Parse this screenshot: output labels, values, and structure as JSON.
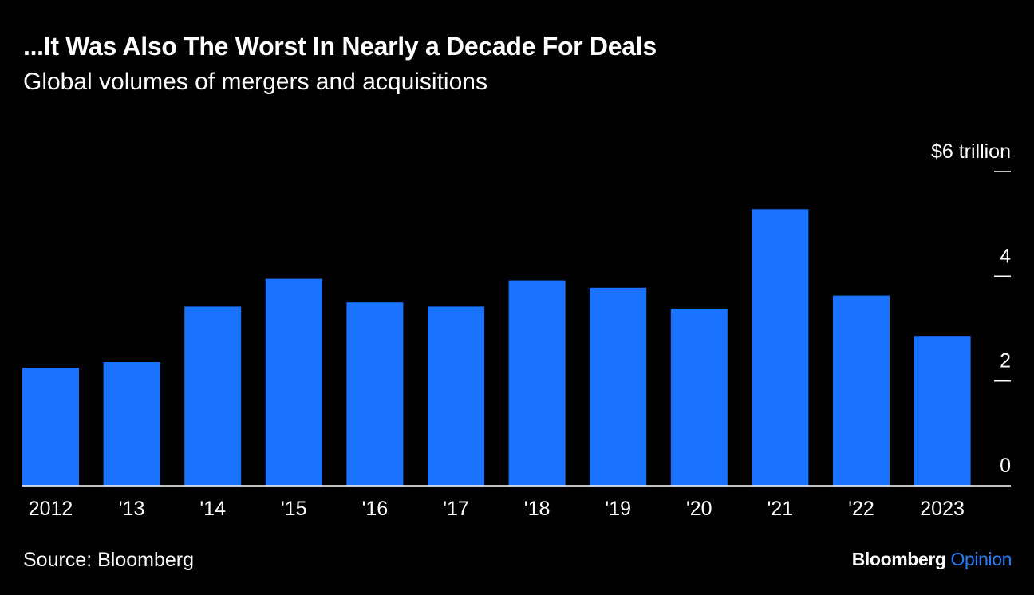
{
  "header": {
    "title": "...It Was Also The Worst In Nearly a Decade For Deals",
    "subtitle": "Global volumes of mergers and acquisitions"
  },
  "footer": {
    "source": "Source: Bloomberg",
    "brand_primary": "Bloomberg",
    "brand_secondary": "Opinion"
  },
  "colors": {
    "background": "#000000",
    "bar": "#1a73ff",
    "text": "#ffffff",
    "brand_accent": "#2a7df5"
  },
  "chart_data": {
    "type": "bar",
    "title": "...It Was Also The Worst In Nearly a Decade For Deals",
    "subtitle": "Global volumes of mergers and acquisitions",
    "categories": [
      "2012",
      "'13",
      "'14",
      "'15",
      "'16",
      "'17",
      "'18",
      "'19",
      "'20",
      "'21",
      "'22",
      "2023"
    ],
    "values": [
      2.25,
      2.36,
      3.42,
      3.95,
      3.5,
      3.42,
      3.92,
      3.78,
      3.38,
      5.28,
      3.63,
      2.86
    ],
    "ylim": [
      0,
      6
    ],
    "yticks": [
      0,
      2,
      4,
      6
    ],
    "ytick_labels": [
      "0",
      "2",
      "4",
      "$6 trillion"
    ],
    "xlabel": "",
    "ylabel": "",
    "grid": false,
    "legend": "none",
    "y_axis_side": "right"
  }
}
